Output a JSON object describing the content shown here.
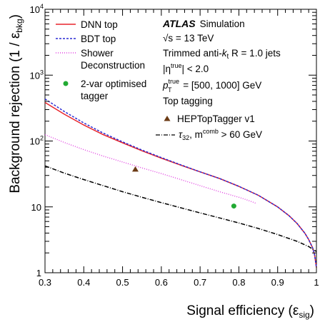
{
  "chart_data": {
    "type": "line",
    "xlabel": "Signal efficiency (ε",
    "xlabel_sub": "sig",
    "xlabel_end": ")",
    "ylabel": "Background rejection (1 / ε",
    "ylabel_sub": "bkg",
    "ylabel_end": ")",
    "xlim": [
      0.3,
      1.0
    ],
    "ylim": [
      1,
      10000
    ],
    "yscale": "log",
    "x_ticks": [
      "0.3",
      "0.4",
      "0.5",
      "0.6",
      "0.7",
      "0.8",
      "0.9",
      "1"
    ],
    "y_ticks": [
      {
        "base": "1",
        "exp": ""
      },
      {
        "base": "10",
        "exp": ""
      },
      {
        "base": "10",
        "exp": "2"
      },
      {
        "base": "10",
        "exp": "3"
      },
      {
        "base": "10",
        "exp": "4"
      }
    ],
    "grid": false,
    "legend_position": "top-left",
    "series": [
      {
        "name": "DNN top",
        "style": "solid",
        "color": "#e8242b",
        "x": [
          0.3,
          0.35,
          0.4,
          0.45,
          0.5,
          0.55,
          0.6,
          0.65,
          0.7,
          0.75,
          0.8,
          0.85,
          0.9,
          0.93,
          0.95,
          0.97,
          0.98,
          0.99,
          0.995,
          1.0
        ],
        "y": [
          385,
          255,
          175,
          125,
          94,
          71,
          55,
          43,
          34,
          27,
          20.5,
          15,
          10,
          7.3,
          5.6,
          4.0,
          3.2,
          2.4,
          1.9,
          1.2
        ]
      },
      {
        "name": "BDT top",
        "style": "dashed",
        "color": "#2b2bd4",
        "x": [
          0.3,
          0.35,
          0.4,
          0.45,
          0.5,
          0.55,
          0.6,
          0.65,
          0.7,
          0.75,
          0.8,
          0.85,
          0.9,
          0.93,
          0.95,
          0.97,
          0.98,
          0.99,
          0.995,
          1.0
        ],
        "y": [
          435,
          280,
          188,
          132,
          97,
          73,
          56,
          43.5,
          34,
          27,
          20.5,
          15,
          10,
          7.3,
          5.6,
          4.0,
          3.2,
          2.4,
          1.9,
          1.2
        ]
      },
      {
        "name": "Shower Deconstruction",
        "name_lines": [
          "Shower",
          "Deconstruction"
        ],
        "style": "dotted",
        "color": "#e040e0",
        "x": [
          0.3,
          0.35,
          0.4,
          0.45,
          0.5,
          0.55,
          0.6,
          0.65,
          0.7,
          0.75,
          0.8,
          0.82,
          0.84,
          0.845
        ],
        "y": [
          125,
          95,
          74,
          59,
          48,
          39,
          32,
          26,
          21,
          17,
          14,
          12.8,
          11.6,
          11.2
        ]
      },
      {
        "name": "τ32, m^comb > 60 GeV",
        "style": "dashdot",
        "color": "#000000",
        "x": [
          0.3,
          0.35,
          0.4,
          0.45,
          0.5,
          0.55,
          0.6,
          0.65,
          0.7,
          0.75,
          0.8,
          0.85,
          0.9,
          0.95,
          0.98,
          1.0
        ],
        "y": [
          42,
          32.5,
          26,
          21,
          17,
          14,
          11.6,
          9.7,
          8.1,
          6.8,
          5.7,
          4.7,
          3.8,
          3.0,
          2.5,
          2.1
        ]
      }
    ],
    "points": [
      {
        "name": "2-var optimised tagger",
        "name_lines": [
          "2-var optimised",
          "tagger"
        ],
        "marker": "circle",
        "color": "#22aa33",
        "x": 0.787,
        "y": 10.3
      },
      {
        "name": "HEPTopTagger v1",
        "marker": "triangle",
        "color": "#6b3a14",
        "x": 0.533,
        "y": 37
      }
    ],
    "annotations": {
      "atlas": "ATLAS",
      "atlas_suffix": "Simulation",
      "line1": "√s = 13 TeV",
      "line2_a": "Trimmed anti-",
      "line2_k": "k",
      "line2_sub": "t",
      "line2_b": " R = 1.0 jets",
      "line3_a": "|η",
      "line3_sup": "true",
      "line3_b": "| < 2.0",
      "line4_p": "p",
      "line4_sup": "true",
      "line4_sub": "T",
      "line4_b": " = [500, 1000] GeV",
      "line5": "Top tagging",
      "tau_label_a": "τ",
      "tau_label_sub": "32",
      "tau_label_b": ", m",
      "tau_label_sup": "comb",
      "tau_label_c": " > 60 GeV"
    }
  }
}
